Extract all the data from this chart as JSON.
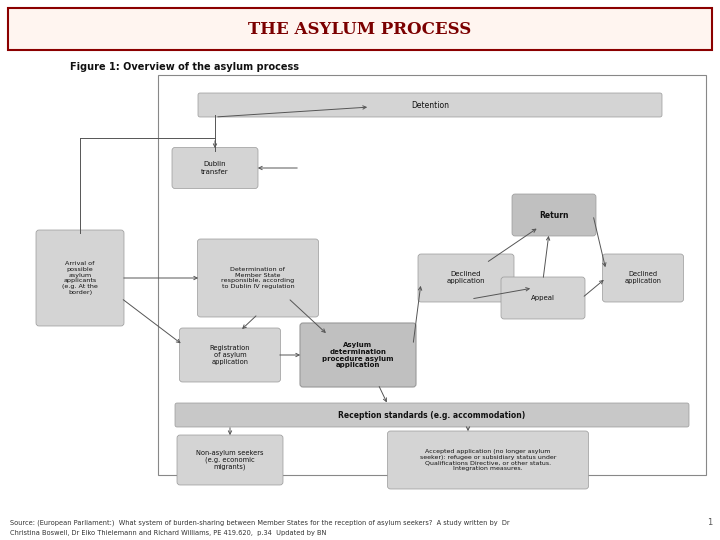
{
  "title": "THE ASYLUM PROCESS",
  "title_color": "#7B0000",
  "title_bg": "#FFF5F0",
  "title_border": "#8B0000",
  "figure_label": "Figure 1: Overview of the asylum process",
  "source_line1": "Source: (European Parliament:)  What system of burden-sharing between Member States for the reception of asylum seekers?  A study written by  Dr",
  "source_line2": "Christina Boswell, Dr Eiko Thielemann and Richard Williams, PE 419.620,  p.34  Updated by BN",
  "bg_color": "#FFFFFF",
  "box_fill_light": "#D4D4D4",
  "box_fill_mid": "#C4C4C4",
  "box_fill_accent": "#BBBBBB"
}
